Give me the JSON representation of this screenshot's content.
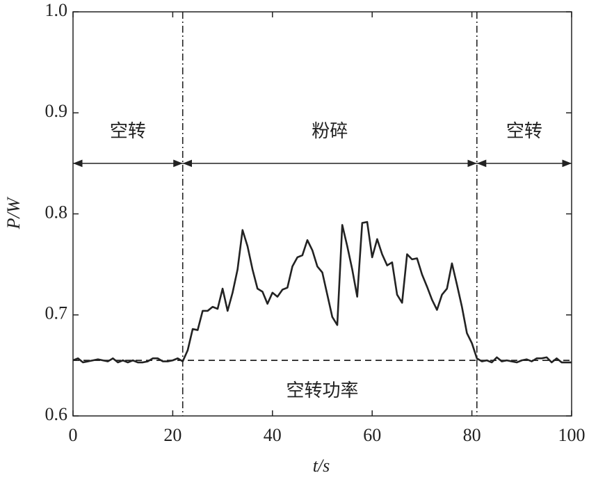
{
  "chart_data": {
    "type": "line",
    "xlabel": "t/s",
    "ylabel": "P/W",
    "xlim": [
      0,
      100
    ],
    "xticks": [
      0,
      20,
      40,
      60,
      80,
      100
    ],
    "ylim": [
      0.6,
      1.0
    ],
    "yticks": [
      0.6,
      0.7,
      0.8,
      0.9,
      {
        "value": 1.0,
        "label": "1.0"
      }
    ],
    "series": [
      {
        "color": "#222222",
        "x": [
          0,
          1,
          2,
          3,
          4,
          5,
          6,
          7,
          8,
          9,
          10,
          11,
          12,
          13,
          14,
          15,
          16,
          17,
          18,
          19,
          20,
          21,
          22,
          23,
          24,
          25,
          26,
          27,
          28,
          29,
          30,
          31,
          32,
          33,
          34,
          35,
          36,
          37,
          38,
          39,
          40,
          41,
          42,
          43,
          44,
          45,
          46,
          47,
          48,
          49,
          50,
          51,
          52,
          53,
          54,
          55,
          56,
          57,
          58,
          59,
          60,
          61,
          62,
          63,
          64,
          65,
          66,
          67,
          68,
          69,
          70,
          71,
          72,
          73,
          74,
          75,
          76,
          77,
          78,
          79,
          80,
          81,
          82,
          83,
          84,
          85,
          86,
          87,
          88,
          89,
          90,
          91,
          92,
          93,
          94,
          95,
          96,
          97,
          98,
          99,
          100
        ],
        "values": [
          0.655,
          0.657,
          0.653,
          0.654,
          0.655,
          0.656,
          0.655,
          0.654,
          0.657,
          0.653,
          0.655,
          0.653,
          0.655,
          0.653,
          0.653,
          0.654,
          0.657,
          0.657,
          0.654,
          0.654,
          0.655,
          0.657,
          0.654,
          0.665,
          0.686,
          0.685,
          0.704,
          0.704,
          0.708,
          0.706,
          0.726,
          0.704,
          0.722,
          0.745,
          0.784,
          0.768,
          0.745,
          0.726,
          0.723,
          0.711,
          0.722,
          0.718,
          0.725,
          0.727,
          0.748,
          0.757,
          0.759,
          0.774,
          0.764,
          0.748,
          0.742,
          0.72,
          0.698,
          0.69,
          0.789,
          0.768,
          0.745,
          0.718,
          0.791,
          0.792,
          0.757,
          0.775,
          0.76,
          0.749,
          0.752,
          0.72,
          0.712,
          0.76,
          0.755,
          0.756,
          0.74,
          0.728,
          0.715,
          0.705,
          0.72,
          0.726,
          0.751,
          0.73,
          0.708,
          0.682,
          0.672,
          0.657,
          0.654,
          0.655,
          0.653,
          0.658,
          0.654,
          0.655,
          0.654,
          0.653,
          0.655,
          0.656,
          0.654,
          0.657,
          0.657,
          0.658,
          0.653,
          0.657,
          0.653,
          0.653,
          0.653
        ]
      }
    ],
    "idle_power": {
      "value": 0.655,
      "label": "空转功率"
    },
    "phase_boundaries": [
      22,
      81
    ],
    "arrow_level": 0.85,
    "phases": [
      {
        "label": "空转",
        "start": 0,
        "end": 22
      },
      {
        "label": "粉碎",
        "start": 22,
        "end": 81
      },
      {
        "label": "空转",
        "start": 81,
        "end": 100
      }
    ]
  }
}
